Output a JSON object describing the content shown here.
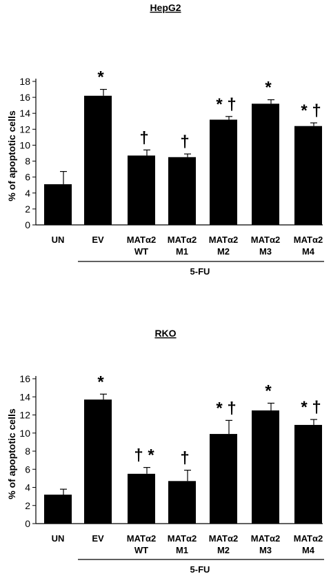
{
  "chart_data": [
    {
      "type": "bar",
      "title": "HepG2",
      "ylabel": "% of apoptotic cells",
      "ylim": [
        0,
        18
      ],
      "yticks": [
        "0",
        "2",
        "4",
        "6",
        "8",
        "10",
        "12",
        "14",
        "16",
        "18"
      ],
      "categories": [
        [
          "UN"
        ],
        [
          "EV"
        ],
        [
          "MATα2",
          "WT"
        ],
        [
          "MATα2",
          "M1"
        ],
        [
          "MATα2",
          "M2"
        ],
        [
          "MATα2",
          "M3"
        ],
        [
          "MATα2",
          "M4"
        ]
      ],
      "values": [
        5.1,
        16.2,
        8.7,
        8.5,
        13.2,
        15.2,
        12.4
      ],
      "errors": [
        1.6,
        0.8,
        0.7,
        0.4,
        0.4,
        0.5,
        0.4
      ],
      "annotations": [
        "",
        "*",
        "†",
        "†",
        "* †",
        "*",
        "* †"
      ],
      "group_label": "5-FU"
    },
    {
      "type": "bar",
      "title": "RKO",
      "ylabel": "% of apoptotic cells",
      "ylim": [
        0,
        16
      ],
      "yticks": [
        "0",
        "2",
        "4",
        "6",
        "8",
        "10",
        "12",
        "14",
        "16"
      ],
      "categories": [
        [
          "UN"
        ],
        [
          "EV"
        ],
        [
          "MATα2",
          "WT"
        ],
        [
          "MATα2",
          "M1"
        ],
        [
          "MATα2",
          "M2"
        ],
        [
          "MATα2",
          "M3"
        ],
        [
          "MATα2",
          "M4"
        ]
      ],
      "values": [
        3.2,
        13.7,
        5.5,
        4.7,
        9.9,
        12.5,
        10.9
      ],
      "errors": [
        0.6,
        0.6,
        0.7,
        1.2,
        1.5,
        0.8,
        0.6
      ],
      "annotations": [
        "",
        "*",
        "† *",
        "†",
        "* †",
        "*",
        "* †"
      ],
      "group_label": "5-FU"
    }
  ]
}
